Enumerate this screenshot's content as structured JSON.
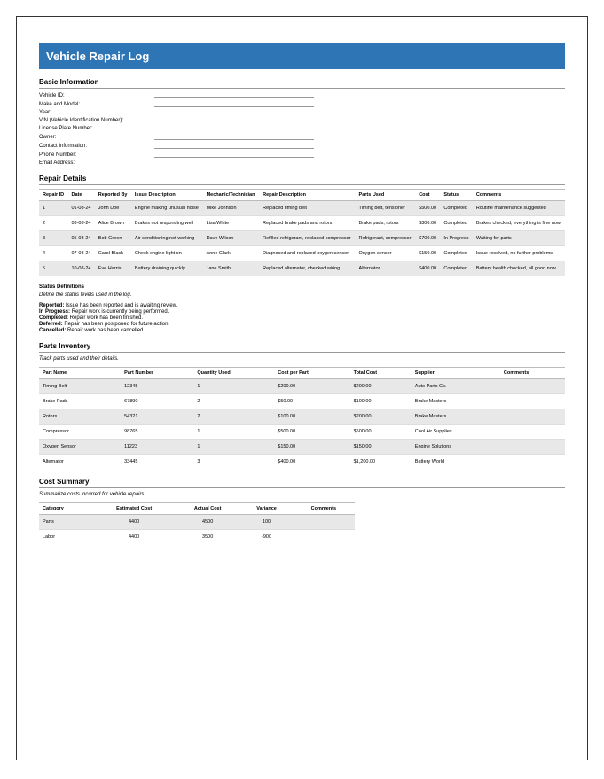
{
  "title": "Vehicle Repair Log",
  "basic": {
    "heading": "Basic Information",
    "fields": [
      {
        "label": "Vehicle ID:",
        "line": true
      },
      {
        "label": "Make and Model:",
        "line": true
      },
      {
        "label": "Year:",
        "line": false
      },
      {
        "label": "VIN (Vehicle Identification Number):",
        "line": false
      },
      {
        "label": "License Plate Number:",
        "line": false
      },
      {
        "label": "Owner:",
        "line": true
      },
      {
        "label": "Contact Information:",
        "line": true
      },
      {
        "label": "Phone Number:",
        "line": true
      },
      {
        "label": "Email Address:",
        "line": false
      }
    ]
  },
  "repair": {
    "heading": "Repair Details",
    "columns": [
      "Repair ID",
      "Date",
      "Reported By",
      "Issue Description",
      "Mechanic/Technician",
      "Repair Description",
      "Parts Used",
      "Cost",
      "Status",
      "Comments"
    ],
    "rows": [
      [
        "1",
        "01-08-24",
        "John Doe",
        "Engine making unusual noise",
        "Mike Johnson",
        "Replaced timing belt",
        "Timing belt, tensioner",
        "$500.00",
        "Completed",
        "Routine maintenance suggested"
      ],
      [
        "2",
        "03-08-24",
        "Alice Brown",
        "Brakes not responding well",
        "Lisa White",
        "Replaced brake pads and rotors",
        "Brake pads, rotors",
        "$300.00",
        "Completed",
        "Brakes checked, everything is fine now"
      ],
      [
        "3",
        "05-08-24",
        "Bob Green",
        "Air conditioning not working",
        "Dave Wilson",
        "Refilled refrigerant, replaced compressor",
        "Refrigerant, compressor",
        "$700.00",
        "In Progress",
        "Waiting for parts"
      ],
      [
        "4",
        "07-08-24",
        "Carol Black",
        "Check engine light on",
        "Anne Clark",
        "Diagnosed and replaced oxygen sensor",
        "Oxygen sensor",
        "$150.00",
        "Completed",
        "Issue resolved, no further problems"
      ],
      [
        "5",
        "10-08-24",
        "Eve Harris",
        "Battery draining quickly",
        "Jane Smith",
        "Replaced alternator, checked wiring",
        "Alternator",
        "$400.00",
        "Completed",
        "Battery health checked, all good now"
      ]
    ]
  },
  "status": {
    "title": "Status Definitions",
    "intro": "Define the status levels used in the log.",
    "defs": [
      {
        "term": "Reported:",
        "desc": "Issue has been reported and is awaiting review."
      },
      {
        "term": "In Progress:",
        "desc": "Repair work is currently being performed."
      },
      {
        "term": "Completed:",
        "desc": "Repair work has been finished."
      },
      {
        "term": "Deferred:",
        "desc": "Repair has been postponed for future action."
      },
      {
        "term": "Cancelled:",
        "desc": "Repair work has been cancelled."
      }
    ]
  },
  "parts": {
    "heading": "Parts Inventory",
    "intro": "Track parts used and their details.",
    "columns": [
      "Part Name",
      "Part Number",
      "Quantity Used",
      "Cost per Part",
      "Total Cost",
      "Supplier",
      "Comments"
    ],
    "rows": [
      [
        "Timing Belt",
        "12345",
        "1",
        "$200.00",
        "$200.00",
        "Auto Parts Co.",
        ""
      ],
      [
        "Brake Pads",
        "67890",
        "2",
        "$50.00",
        "$100.00",
        "Brake Masters",
        ""
      ],
      [
        "Rotors",
        "54321",
        "2",
        "$100.00",
        "$200.00",
        "Brake Masters",
        ""
      ],
      [
        "Compressor",
        "98765",
        "1",
        "$500.00",
        "$500.00",
        "Cool Air Supplies",
        ""
      ],
      [
        "Oxygen Sensor",
        "11223",
        "1",
        "$150.00",
        "$150.00",
        "Engine Solutions",
        ""
      ],
      [
        "Alternator",
        "33445",
        "3",
        "$400.00",
        "$1,200.00",
        "Battery World",
        ""
      ]
    ]
  },
  "cost": {
    "heading": "Cost Summary",
    "intro": "Summarize costs incurred for vehicle repairs.",
    "columns": [
      "Category",
      "Estimated Cost",
      "Actual Cost",
      "Variance",
      "Comments"
    ],
    "rows": [
      [
        "Parts",
        "4400",
        "4500",
        "100",
        ""
      ],
      [
        "Labor",
        "4400",
        "3500",
        "-900",
        ""
      ]
    ]
  }
}
